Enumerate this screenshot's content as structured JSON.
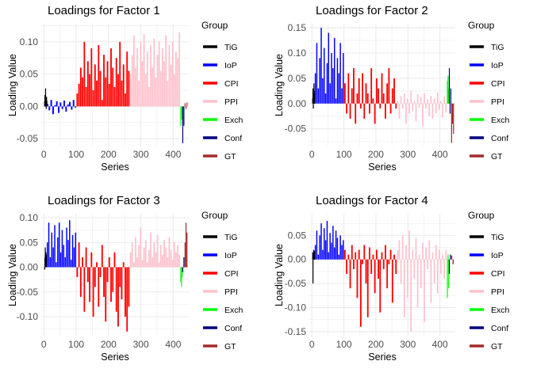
{
  "legend_title": "Group",
  "groups": [
    {
      "name": "TiG",
      "color": "#000000"
    },
    {
      "name": "IoP",
      "color": "#0000FF"
    },
    {
      "name": "CPI",
      "color": "#FF0000"
    },
    {
      "name": "PPI",
      "color": "#FFC0CB"
    },
    {
      "name": "Exch",
      "color": "#00FF00"
    },
    {
      "name": "Conf",
      "color": "#000080"
    },
    {
      "name": "GT",
      "color": "#A52A2A"
    }
  ],
  "chart_data": [
    {
      "type": "bar",
      "title": "Loadings for Factor 1",
      "xlabel": "Series",
      "ylabel": "Loading Value",
      "xlim": [
        -8,
        448
      ],
      "ylim": [
        -0.062,
        0.128
      ],
      "xticks": [
        0,
        100,
        200,
        300,
        400
      ],
      "yticks": [
        -0.05,
        0.0,
        0.05,
        0.1
      ],
      "ytick_labels": [
        "-0.05",
        "0.00",
        "0.05",
        "0.10"
      ],
      "series": [
        {
          "group": "TiG",
          "x_range": [
            1,
            8
          ],
          "values": [
            0.008,
            0.018,
            0.006,
            0.028,
            0.012,
            -0.004,
            0.015,
            0.009
          ]
        },
        {
          "group": "IoP",
          "x_range": [
            9,
            100
          ],
          "values": [
            0.004,
            -0.006,
            0.01,
            -0.012,
            0.002,
            0.008,
            -0.01,
            0.006,
            -0.004,
            0.009,
            -0.008,
            0.003,
            0.007,
            -0.005,
            0.01,
            -0.002
          ]
        },
        {
          "group": "CPI",
          "x_range": [
            101,
            265
          ],
          "values": [
            0.02,
            0.035,
            0.06,
            0.045,
            0.1,
            0.03,
            0.07,
            0.05,
            0.09,
            0.025,
            0.065,
            0.04,
            0.095,
            0.055,
            0.01,
            0.08,
            0.045,
            0.07,
            0.035,
            0.09,
            0.06,
            0.03,
            0.075,
            0.05,
            0.1,
            0.04,
            0.065,
            0.02,
            0.085,
            0.055
          ]
        },
        {
          "group": "PPI",
          "x_range": [
            266,
            421
          ],
          "values": [
            0.05,
            0.08,
            0.11,
            0.06,
            0.09,
            0.04,
            0.1,
            0.07,
            0.112,
            0.05,
            0.085,
            0.03,
            0.095,
            0.06,
            0.105,
            0.045,
            0.08,
            0.1,
            0.055,
            0.09,
            0.07,
            0.11,
            0.04,
            0.095,
            0.065,
            0.1,
            0.05,
            0.085,
            0.075,
            0.115
          ]
        },
        {
          "group": "Exch",
          "x_range": [
            422,
            427
          ],
          "values": [
            -0.03,
            -0.02
          ]
        },
        {
          "group": "Conf",
          "x_range": [
            428,
            434
          ],
          "values": [
            -0.057,
            -0.03
          ]
        },
        {
          "group": "GT",
          "x_range": [
            435,
            443
          ],
          "values": [
            0.005,
            -0.004,
            0.006
          ]
        }
      ]
    },
    {
      "type": "bar",
      "title": "Loadings for Factor 2",
      "xlabel": "Series",
      "ylabel": "Loading Value",
      "xlim": [
        -8,
        448
      ],
      "ylim": [
        -0.085,
        0.158
      ],
      "xticks": [
        0,
        100,
        200,
        300,
        400
      ],
      "yticks": [
        -0.05,
        0.0,
        0.05,
        0.1,
        0.15
      ],
      "ytick_labels": [
        "-0.05",
        "0.00",
        "0.05",
        "0.10",
        "0.15"
      ],
      "series": [
        {
          "group": "TiG",
          "x_range": [
            1,
            8
          ],
          "values": [
            0.01,
            0.03,
            -0.01,
            0.02,
            0.04,
            0.005,
            0.015,
            0.025
          ]
        },
        {
          "group": "IoP",
          "x_range": [
            9,
            100
          ],
          "values": [
            0.06,
            0.12,
            0.03,
            0.09,
            0.15,
            0.05,
            0.11,
            0.02,
            0.08,
            0.14,
            0.04,
            0.1,
            0.07,
            0.13,
            0.01,
            0.09,
            0.06,
            0.12,
            0.03,
            0.1
          ]
        },
        {
          "group": "CPI",
          "x_range": [
            101,
            265
          ],
          "values": [
            0.04,
            -0.02,
            0.06,
            -0.03,
            0.03,
            0.07,
            -0.04,
            0.02,
            0.05,
            -0.01,
            0.06,
            -0.03,
            0.04,
            0.02,
            -0.02,
            0.07,
            0.01,
            -0.04,
            0.05,
            0.03,
            -0.01,
            0.06,
            0.02,
            -0.03,
            0.04,
            0.07,
            -0.02,
            0.03,
            0.05,
            -0.01
          ]
        },
        {
          "group": "PPI",
          "x_range": [
            266,
            421
          ],
          "values": [
            0.005,
            -0.03,
            0.015,
            -0.01,
            0.02,
            -0.04,
            0.01,
            -0.02,
            0.025,
            -0.015,
            0.005,
            -0.035,
            0.018,
            -0.008,
            0.012,
            -0.045,
            0.02,
            -0.01,
            0.008,
            -0.025,
            0.015,
            -0.03,
            0.01,
            -0.02,
            0.022,
            -0.012,
            0.005,
            -0.028,
            0.014,
            -0.018
          ]
        },
        {
          "group": "Exch",
          "x_range": [
            422,
            427
          ],
          "values": [
            0.045,
            0.055,
            0.03
          ]
        },
        {
          "group": "Conf",
          "x_range": [
            428,
            434
          ],
          "values": [
            0.07,
            -0.02,
            0.03
          ]
        },
        {
          "group": "GT",
          "x_range": [
            435,
            443
          ],
          "values": [
            -0.078,
            -0.04,
            -0.06
          ]
        }
      ]
    },
    {
      "type": "bar",
      "title": "Loadings for Factor 3",
      "xlabel": "Series",
      "ylabel": "Loading Value",
      "xlim": [
        -8,
        448
      ],
      "ylim": [
        -0.14,
        0.108
      ],
      "xticks": [
        0,
        100,
        200,
        300,
        400
      ],
      "yticks": [
        -0.1,
        -0.05,
        0.0,
        0.05,
        0.1
      ],
      "ytick_labels": [
        "-0.10",
        "-0.05",
        "0.00",
        "0.05",
        "0.10"
      ],
      "series": [
        {
          "group": "TiG",
          "x_range": [
            1,
            8
          ],
          "values": [
            -0.005,
            0.02,
            0.04,
            0.01,
            0.03,
            0.015,
            0.025,
            0.005
          ]
        },
        {
          "group": "IoP",
          "x_range": [
            9,
            100
          ],
          "values": [
            0.05,
            0.09,
            0.02,
            0.07,
            0.04,
            0.085,
            0.01,
            0.06,
            0.09,
            0.03,
            0.075,
            0.045,
            0.02,
            0.08,
            0.055,
            0.095,
            0.015,
            0.065,
            0.04,
            0.07
          ]
        },
        {
          "group": "CPI",
          "x_range": [
            101,
            265
          ],
          "values": [
            -0.02,
            0.05,
            -0.06,
            0.02,
            -0.09,
            0.04,
            -0.03,
            -0.07,
            0.03,
            -0.1,
            -0.04,
            0.01,
            -0.08,
            -0.02,
            0.045,
            -0.06,
            -0.11,
            -0.03,
            0.02,
            -0.07,
            -0.05,
            0.03,
            -0.09,
            -0.12,
            -0.04,
            -0.065,
            0.01,
            -0.1,
            -0.13,
            -0.08
          ]
        },
        {
          "group": "PPI",
          "x_range": [
            266,
            421
          ],
          "values": [
            0.03,
            0.05,
            0.01,
            0.06,
            0.02,
            0.045,
            0.08,
            0.015,
            0.04,
            0.055,
            0.01,
            0.035,
            0.07,
            0.02,
            0.05,
            0.03,
            0.065,
            0.01,
            0.045,
            0.025,
            0.055,
            0.04,
            0.02,
            0.06,
            0.035,
            0.015,
            0.05,
            0.03,
            0.045,
            0.025
          ]
        },
        {
          "group": "Exch",
          "x_range": [
            422,
            427
          ],
          "values": [
            -0.03,
            -0.04,
            -0.02
          ]
        },
        {
          "group": "Conf",
          "x_range": [
            428,
            434
          ],
          "values": [
            -0.01,
            0.02
          ]
        },
        {
          "group": "GT",
          "x_range": [
            435,
            443
          ],
          "values": [
            0.05,
            0.09,
            0.07
          ]
        }
      ]
    },
    {
      "type": "bar",
      "title": "Loadings for Factor 4",
      "xlabel": "Series",
      "ylabel": "Loading Value",
      "xlim": [
        -8,
        448
      ],
      "ylim": [
        -0.16,
        0.095
      ],
      "xticks": [
        0,
        100,
        200,
        300,
        400
      ],
      "yticks": [
        -0.15,
        -0.1,
        -0.05,
        0.0,
        0.05
      ],
      "ytick_labels": [
        "-0.15",
        "-0.10",
        "-0.05",
        "0.00",
        "0.05"
      ],
      "series": [
        {
          "group": "TiG",
          "x_range": [
            1,
            8
          ],
          "values": [
            0.015,
            -0.05,
            0.01,
            0.02,
            0.005,
            0.012,
            0.018,
            0.008
          ]
        },
        {
          "group": "IoP",
          "x_range": [
            9,
            100
          ],
          "values": [
            0.03,
            0.06,
            0.01,
            0.05,
            0.075,
            0.02,
            0.065,
            0.04,
            0.08,
            0.015,
            0.055,
            0.035,
            0.07,
            0.025,
            0.06,
            0.045,
            0.01,
            0.05,
            0.03,
            0.04
          ]
        },
        {
          "group": "CPI",
          "x_range": [
            101,
            265
          ],
          "values": [
            0.02,
            -0.03,
            0.01,
            -0.06,
            0.03,
            -0.02,
            0.015,
            -0.08,
            0.02,
            -0.14,
            -0.01,
            0.03,
            -0.05,
            -0.12,
            0.025,
            -0.03,
            0.01,
            -0.07,
            0.02,
            -0.04,
            -0.11,
            0.015,
            -0.02,
            0.03,
            -0.06,
            -0.01,
            0.02,
            -0.09,
            0.01,
            -0.03
          ]
        },
        {
          "group": "PPI",
          "x_range": [
            266,
            421
          ],
          "values": [
            0.02,
            0.04,
            -0.05,
            0.05,
            -0.12,
            0.03,
            -0.08,
            0.06,
            -0.15,
            0.02,
            -0.04,
            0.045,
            -0.1,
            0.01,
            -0.06,
            0.035,
            -0.13,
            0.025,
            -0.02,
            0.04,
            -0.09,
            0.015,
            -0.05,
            0.03,
            -0.07,
            0.02,
            -0.03,
            0.01,
            -0.04,
            0.02
          ]
        },
        {
          "group": "Exch",
          "x_range": [
            422,
            427
          ],
          "values": [
            -0.08,
            0.01,
            -0.06
          ]
        },
        {
          "group": "Conf",
          "x_range": [
            428,
            434
          ],
          "values": [
            -0.03,
            0.01
          ]
        },
        {
          "group": "GT",
          "x_range": [
            435,
            443
          ],
          "values": [
            0.008,
            -0.01
          ]
        }
      ]
    }
  ]
}
